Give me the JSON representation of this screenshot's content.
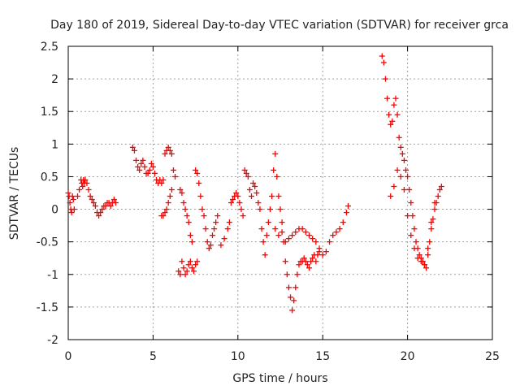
{
  "chart_data": {
    "type": "scatter",
    "title": "Day 180 of 2019, Sidereal Day-to-day VTEC variation (SDTVAR) for receiver grca",
    "xlabel": "GPS time / hours",
    "ylabel": "SDTVAR / TECUs",
    "xlim": [
      0,
      25
    ],
    "ylim": [
      -2,
      2.5
    ],
    "xticks": [
      0,
      5,
      10,
      15,
      20,
      25
    ],
    "yticks": [
      -2,
      -1.5,
      -1,
      -0.5,
      0,
      0.5,
      1,
      1.5,
      2,
      2.5
    ],
    "xtick_labels": [
      "0",
      "5",
      "10",
      "15",
      "20",
      "25"
    ],
    "ytick_labels": [
      "-2",
      "-1.5",
      "-1",
      "-0.5",
      "0",
      "0.5",
      "1",
      "1.5",
      "2",
      "2.5"
    ],
    "grid": true,
    "marker": "+",
    "color": "#ff0000",
    "series": [
      {
        "name": "grca",
        "x": [
          0.0,
          0.05,
          0.1,
          0.15,
          0.2,
          0.25,
          0.3,
          0.35,
          0.55,
          0.65,
          0.75,
          0.8,
          0.85,
          0.9,
          0.95,
          1.0,
          1.1,
          1.2,
          1.3,
          1.4,
          1.5,
          1.6,
          1.7,
          1.8,
          1.9,
          2.0,
          2.1,
          2.2,
          2.3,
          2.4,
          2.5,
          2.6,
          2.7,
          2.8,
          3.8,
          3.9,
          4.0,
          4.1,
          4.2,
          4.3,
          4.4,
          4.5,
          4.6,
          4.7,
          4.8,
          4.9,
          5.0,
          5.1,
          5.2,
          5.3,
          5.4,
          5.5,
          5.6,
          5.7,
          5.8,
          5.9,
          6.0,
          6.1,
          6.2,
          6.3,
          5.5,
          5.6,
          5.7,
          5.8,
          5.9,
          6.0,
          6.1,
          6.5,
          6.6,
          6.7,
          6.8,
          6.9,
          7.0,
          7.1,
          7.2,
          7.3,
          7.4,
          7.5,
          7.6,
          6.6,
          6.7,
          6.8,
          6.9,
          7.0,
          7.1,
          7.2,
          7.3,
          7.5,
          7.6,
          7.7,
          7.8,
          7.9,
          8.0,
          8.1,
          8.2,
          8.3,
          8.4,
          8.5,
          8.6,
          8.7,
          8.8,
          9.0,
          9.2,
          9.4,
          9.5,
          9.6,
          9.7,
          9.8,
          9.9,
          10.0,
          10.1,
          10.2,
          10.3,
          10.4,
          10.5,
          10.6,
          10.7,
          10.8,
          10.9,
          11.0,
          11.1,
          11.2,
          11.3,
          11.4,
          11.5,
          11.6,
          11.7,
          11.8,
          11.9,
          12.0,
          12.1,
          12.2,
          12.3,
          12.4,
          12.5,
          12.6,
          12.7,
          12.8,
          12.9,
          13.0,
          13.1,
          13.2,
          13.3,
          13.4,
          13.5,
          13.6,
          13.7,
          13.8,
          13.9,
          14.0,
          14.1,
          14.2,
          14.3,
          14.4,
          14.5,
          14.6,
          14.7,
          14.8,
          12.2,
          12.4,
          12.6,
          12.8,
          13.0,
          13.2,
          13.4,
          13.6,
          13.8,
          14.0,
          14.2,
          14.4,
          14.6,
          14.8,
          15.0,
          15.2,
          15.4,
          15.6,
          15.8,
          16.0,
          16.2,
          16.4,
          16.5,
          18.5,
          18.6,
          18.7,
          18.8,
          18.9,
          19.0,
          19.1,
          19.2,
          19.3,
          19.4,
          19.5,
          19.6,
          19.7,
          19.8,
          19.9,
          20.0,
          20.1,
          20.2,
          20.3,
          20.4,
          20.5,
          20.6,
          20.7,
          20.8,
          20.9,
          21.0,
          21.1,
          21.2,
          21.3,
          21.4,
          21.5,
          21.6,
          21.7,
          21.8,
          21.9,
          22.0,
          19.0,
          19.2,
          19.4,
          19.6,
          19.8,
          20.0,
          20.2,
          20.4,
          20.6,
          20.8,
          21.0,
          21.2,
          21.4,
          21.6
        ],
        "y": [
          0.25,
          0.2,
          0.1,
          0.0,
          -0.05,
          0.2,
          0.15,
          0.0,
          0.2,
          0.3,
          0.45,
          0.4,
          0.35,
          0.45,
          0.4,
          0.45,
          0.4,
          0.3,
          0.2,
          0.15,
          0.1,
          0.05,
          -0.05,
          -0.1,
          -0.05,
          0.0,
          0.05,
          0.05,
          0.1,
          0.1,
          0.05,
          0.1,
          0.15,
          0.1,
          0.95,
          0.9,
          0.75,
          0.65,
          0.6,
          0.7,
          0.75,
          0.65,
          0.55,
          0.55,
          0.6,
          0.7,
          0.65,
          0.55,
          0.45,
          0.4,
          0.45,
          0.4,
          0.45,
          0.85,
          0.9,
          0.95,
          0.9,
          0.85,
          0.6,
          0.5,
          -0.1,
          -0.1,
          -0.05,
          0.0,
          0.1,
          0.2,
          0.3,
          -0.95,
          -1.0,
          -0.8,
          -0.9,
          -1.0,
          -0.95,
          -0.85,
          -0.8,
          -0.9,
          -0.95,
          -0.85,
          -0.8,
          0.3,
          0.25,
          0.1,
          0.0,
          -0.1,
          -0.2,
          -0.4,
          -0.5,
          0.6,
          0.55,
          0.4,
          0.2,
          0.0,
          -0.1,
          -0.3,
          -0.5,
          -0.6,
          -0.55,
          -0.4,
          -0.3,
          -0.2,
          -0.1,
          -0.55,
          -0.45,
          -0.3,
          -0.2,
          0.1,
          0.15,
          0.2,
          0.25,
          0.2,
          0.1,
          0.0,
          -0.1,
          0.6,
          0.55,
          0.5,
          0.3,
          0.2,
          0.4,
          0.35,
          0.25,
          0.1,
          0.0,
          -0.3,
          -0.5,
          -0.7,
          -0.4,
          -0.2,
          0.0,
          0.2,
          0.6,
          0.85,
          0.5,
          0.2,
          0.0,
          -0.2,
          -0.5,
          -0.8,
          -1.0,
          -1.2,
          -1.35,
          -1.55,
          -1.4,
          -1.2,
          -1.0,
          -0.85,
          -0.8,
          -0.8,
          -0.75,
          -0.8,
          -0.85,
          -0.9,
          -0.8,
          -0.75,
          -0.7,
          -0.8,
          -0.7,
          -0.65,
          -0.3,
          -0.4,
          -0.35,
          -0.5,
          -0.45,
          -0.4,
          -0.35,
          -0.3,
          -0.3,
          -0.35,
          -0.4,
          -0.45,
          -0.5,
          -0.6,
          -0.7,
          -0.65,
          -0.5,
          -0.4,
          -0.35,
          -0.3,
          -0.2,
          -0.05,
          0.05,
          2.35,
          2.25,
          2.0,
          1.7,
          1.45,
          1.3,
          1.35,
          1.6,
          1.7,
          1.45,
          1.1,
          0.95,
          0.85,
          0.75,
          0.6,
          0.5,
          0.3,
          0.1,
          -0.1,
          -0.3,
          -0.5,
          -0.6,
          -0.7,
          -0.75,
          -0.8,
          -0.85,
          -0.9,
          -0.7,
          -0.5,
          -0.3,
          -0.15,
          0.0,
          0.1,
          0.2,
          0.3,
          0.35,
          0.2,
          0.35,
          0.6,
          0.5,
          0.3,
          -0.1,
          -0.4,
          -0.6,
          -0.75,
          -0.8,
          -0.85,
          -0.6,
          -0.2,
          0.1
        ]
      }
    ]
  }
}
